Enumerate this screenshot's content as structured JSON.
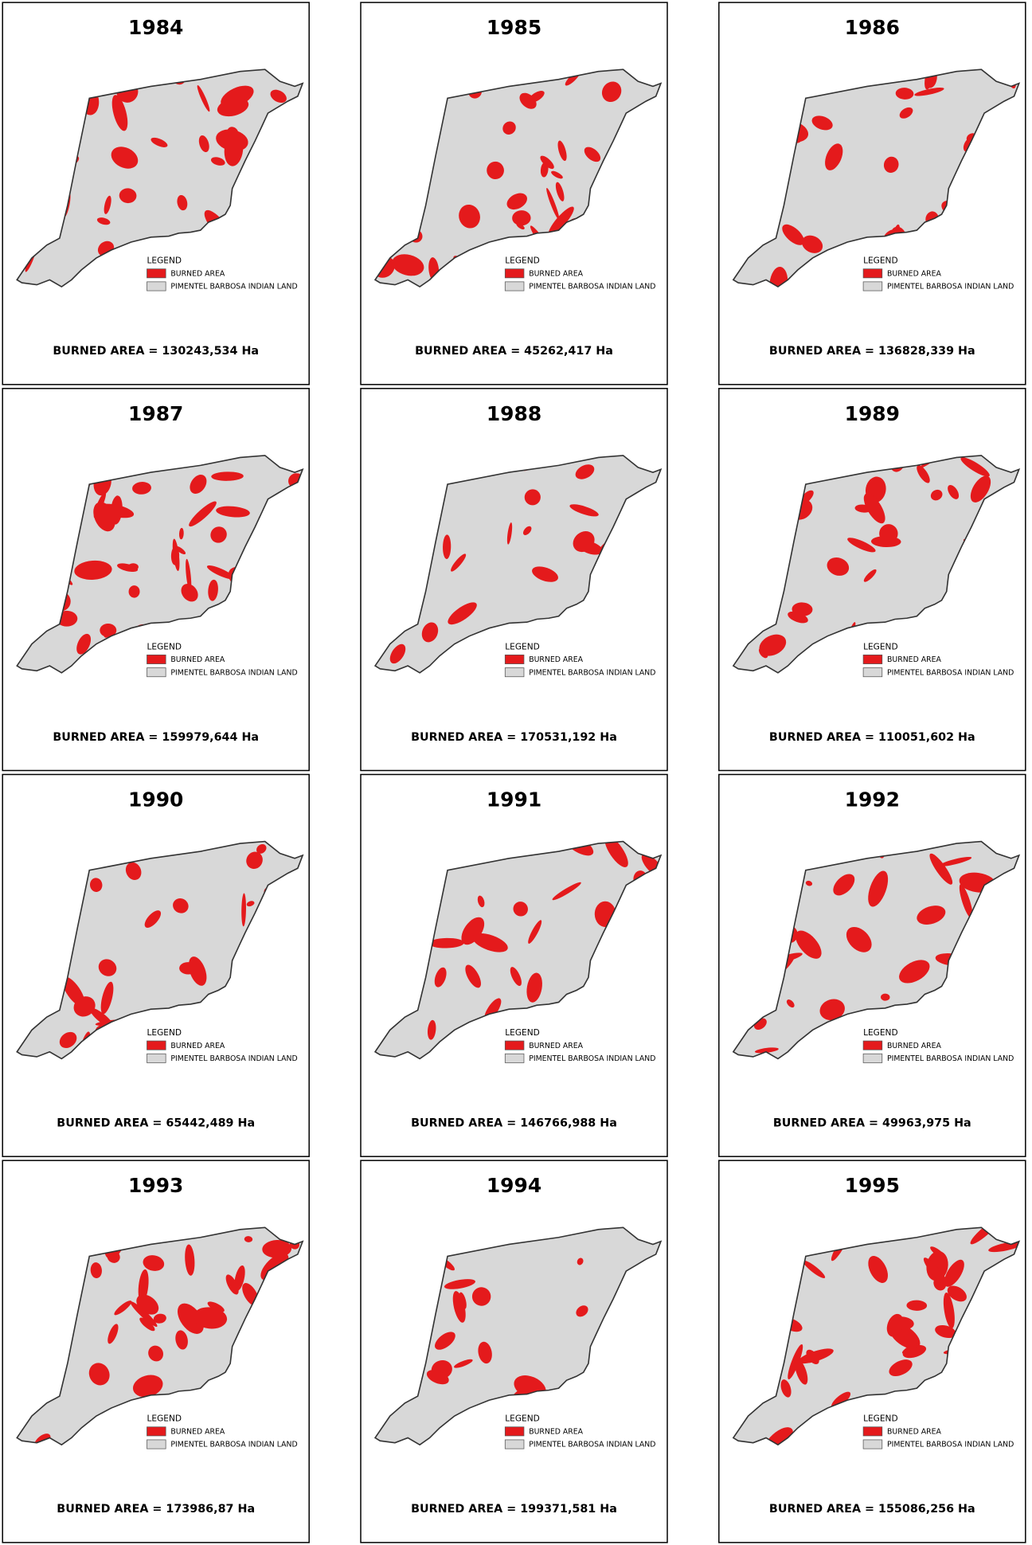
{
  "panels": [
    {
      "year": "1984",
      "legend_title": "LEGEND",
      "legend_items": [
        "BURNED AREA",
        "PIMENTEL BARBOSA INDIAN LAND"
      ],
      "area_label": "BURNED AREA",
      "area_value": "= 130243,534 Ha"
    },
    {
      "year": "1985",
      "legend_title": "LEGEND",
      "legend_items": [
        "BURNED AREA",
        "PIMENTEL BARBOSA INDIAN LAND"
      ],
      "area_label": "BURNED AREA",
      "area_value": "= 45262,417 Ha"
    },
    {
      "year": "1986",
      "legend_title": "LEGEND",
      "legend_items": [
        "BURNED AREA",
        "PIMENTEL BARBOSA INDIAN LAND"
      ],
      "area_label": "BURNED AREA",
      "area_value": "= 136828,339 Ha"
    },
    {
      "year": "1987",
      "legend_title": "LEGEND",
      "legend_items": [
        "BURNED AREA",
        "PIMENTEL BARBOSA INDIAN LAND"
      ],
      "area_label": "BURNED AREA",
      "area_value": "= 159979,644 Ha"
    },
    {
      "year": "1988",
      "legend_title": "LEGEND",
      "legend_items": [
        "BURNED AREA",
        "PIMENTEL BARBOSA INDIAN LAND"
      ],
      "area_label": "BURNED AREA",
      "area_value": "= 170531,192 Ha"
    },
    {
      "year": "1989",
      "legend_title": "LEGEND",
      "legend_items": [
        "BURNED AREA",
        "PIMENTEL BARBOSA INDIAN LAND"
      ],
      "area_label": "BURNED AREA",
      "area_value": "= 110051,602 Ha"
    },
    {
      "year": "1990",
      "legend_title": "LEGEND",
      "legend_items": [
        "BURNED AREA",
        "PIMENTEL BARBOSA INDIAN LAND"
      ],
      "area_label": "BURNED AREA",
      "area_value": "= 65442,489 Ha"
    },
    {
      "year": "1991",
      "legend_title": "LEGEND",
      "legend_items": [
        "BURNED AREA",
        "PIMENTEL BARBOSA INDIAN LAND"
      ],
      "area_label": "BURNED AREA",
      "area_value": "= 146766,988 Ha"
    },
    {
      "year": "1992",
      "legend_title": "LEGEND",
      "legend_items": [
        "BURNED AREA",
        "PIMENTEL BARBOSA INDIAN LAND"
      ],
      "area_label": "BURNED AREA",
      "area_value": "= 49963,975 Ha"
    },
    {
      "year": "1993",
      "legend_title": "LEGEND",
      "legend_items": [
        "BURNED AREA",
        "PIMENTEL BARBOSA INDIAN LAND"
      ],
      "area_label": "BURNED AREA",
      "area_value": "= 173986,87 Ha"
    },
    {
      "year": "1994",
      "legend_title": "LEGEND",
      "legend_items": [
        "BURNED AREA",
        "PIMENTEL BARBOSA INDIAN LAND"
      ],
      "area_label": "BURNED AREA",
      "area_value": "= 199371,581 Ha"
    },
    {
      "year": "1995",
      "legend_title": "LEGEND",
      "legend_items": [
        "BURNED AREA",
        "PIMENTEL BARBOSA INDIAN LAND"
      ],
      "area_label": "BURNED AREA",
      "area_value": "= 155086,256 Ha"
    }
  ]
}
